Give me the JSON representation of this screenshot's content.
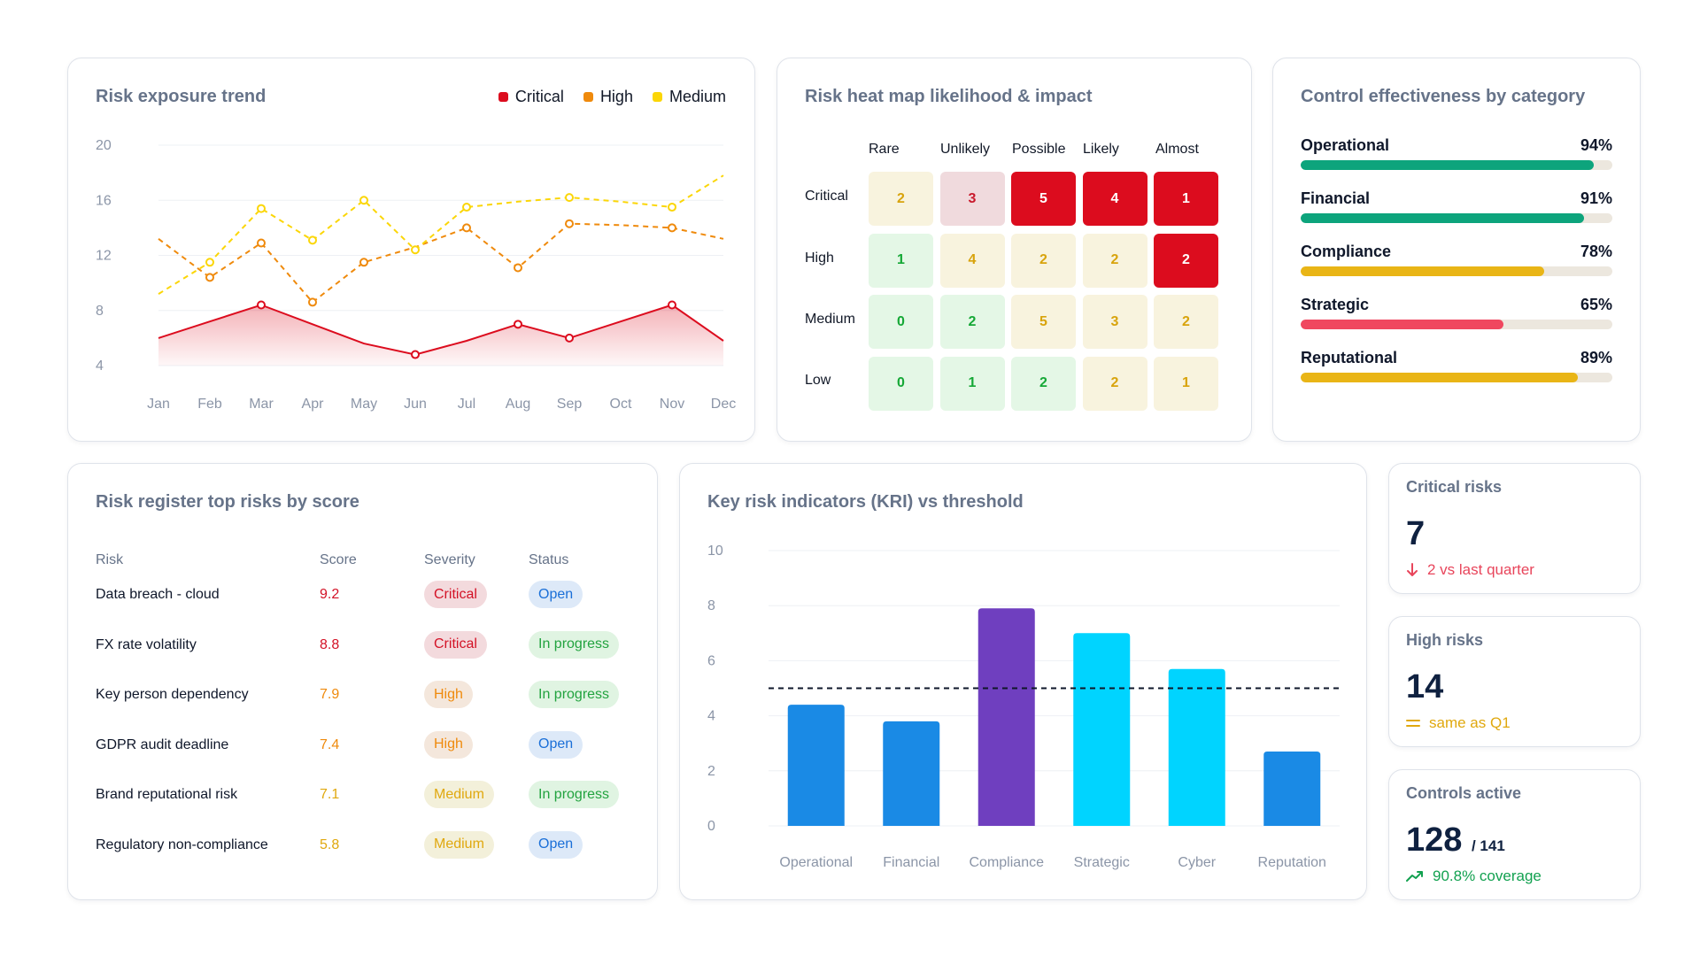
{
  "trend": {
    "title": "Risk exposure trend",
    "legend": [
      {
        "label": "Critical",
        "color": "#dc0c1e"
      },
      {
        "label": "High",
        "color": "#ef8a0c"
      },
      {
        "label": "Medium",
        "color": "#fbd607"
      }
    ]
  },
  "heatmap": {
    "title": "Risk heat map likelihood & impact",
    "columns": [
      "Rare",
      "Unlikely",
      "Possible",
      "Likely",
      "Almost"
    ],
    "rows": [
      "Critical",
      "High",
      "Medium",
      "Low"
    ]
  },
  "controls": {
    "title": "Control effectiveness by category",
    "items": [
      {
        "label": "Operational",
        "value_text": "94%",
        "value": 94,
        "color": "#0da47c"
      },
      {
        "label": "Financial",
        "value_text": "91%",
        "value": 91,
        "color": "#0da47c"
      },
      {
        "label": "Compliance",
        "value_text": "78%",
        "value": 78,
        "color": "#e9b516"
      },
      {
        "label": "Strategic",
        "value_text": "65%",
        "value": 65,
        "color": "#f0475f"
      },
      {
        "label": "Reputational",
        "value_text": "89%",
        "value": 89,
        "color": "#e9b516"
      }
    ]
  },
  "register": {
    "title": "Risk register top risks by score",
    "headers": [
      "Risk",
      "Score",
      "Severity",
      "Status"
    ],
    "rows": [
      {
        "risk": "Data breach - cloud",
        "score": "9.2",
        "severity": "Critical",
        "status": "Open"
      },
      {
        "risk": "FX rate volatility",
        "score": "8.8",
        "severity": "Critical",
        "status": "In progress"
      },
      {
        "risk": "Key person dependency",
        "score": "7.9",
        "severity": "High",
        "status": "In progress"
      },
      {
        "risk": "GDPR audit deadline",
        "score": "7.4",
        "severity": "High",
        "status": "Open"
      },
      {
        "risk": "Brand reputational risk",
        "score": "7.1",
        "severity": "Medium",
        "status": "In progress"
      },
      {
        "risk": "Regulatory non-compliance",
        "score": "5.8",
        "severity": "Medium",
        "status": "Open"
      }
    ]
  },
  "kri": {
    "title": "Key risk indicators (KRI) vs threshold"
  },
  "stats": {
    "critical": {
      "title": "Critical risks",
      "value": "7",
      "note": "2 vs last quarter",
      "note_icon": "arrow-down-icon",
      "note_color": "#e8455b"
    },
    "high": {
      "title": "High risks",
      "value": "14",
      "note": "same as Q1",
      "note_icon": "equals-icon",
      "note_color": "#e0a80e"
    },
    "controls": {
      "title": "Controls active",
      "value": "128",
      "sub": "/ 141",
      "note": "90.8% coverage",
      "note_icon": "trend-up-icon",
      "note_color": "#12a150"
    }
  },
  "chart_data": [
    {
      "type": "line",
      "title": "Risk exposure trend",
      "categories": [
        "Jan",
        "Feb",
        "Mar",
        "Apr",
        "May",
        "Jun",
        "Jul",
        "Aug",
        "Sep",
        "Oct",
        "Nov",
        "Dec"
      ],
      "yticks": [
        4,
        8,
        12,
        16,
        20
      ],
      "ylim": [
        4,
        20
      ],
      "grid": true,
      "legend_position": "top-right",
      "series": [
        {
          "name": "Critical",
          "color": "#dc0c1e",
          "style": "solid-area",
          "values": [
            6.0,
            7.2,
            8.4,
            7.0,
            5.6,
            4.8,
            5.8,
            7.0,
            6.0,
            7.2,
            8.4,
            5.8
          ],
          "markers": [
            false,
            false,
            true,
            false,
            false,
            true,
            false,
            true,
            true,
            false,
            true,
            false
          ]
        },
        {
          "name": "High",
          "color": "#ef8a0c",
          "style": "dashed",
          "values": [
            13.2,
            10.4,
            12.9,
            8.6,
            11.5,
            12.6,
            14.0,
            11.1,
            14.3,
            14.2,
            14.0,
            13.2
          ],
          "markers": [
            false,
            true,
            true,
            true,
            true,
            false,
            true,
            true,
            true,
            false,
            true,
            false
          ]
        },
        {
          "name": "Medium",
          "color": "#fbd607",
          "style": "dashed",
          "values": [
            9.2,
            11.5,
            15.4,
            13.1,
            16.0,
            12.4,
            15.5,
            15.9,
            16.2,
            15.9,
            15.5,
            17.8
          ],
          "markers": [
            false,
            true,
            true,
            true,
            true,
            true,
            true,
            false,
            true,
            false,
            true,
            false
          ]
        }
      ]
    },
    {
      "type": "heatmap",
      "title": "Risk heat map likelihood & impact",
      "x": [
        "Rare",
        "Unlikely",
        "Possible",
        "Likely",
        "Almost"
      ],
      "y": [
        "Critical",
        "High",
        "Medium",
        "Low"
      ],
      "values": [
        [
          2,
          3,
          5,
          4,
          1
        ],
        [
          1,
          4,
          2,
          2,
          2
        ],
        [
          0,
          2,
          5,
          3,
          2
        ],
        [
          0,
          1,
          2,
          2,
          1
        ]
      ]
    },
    {
      "type": "bar",
      "title": "Key risk indicators (KRI) vs threshold",
      "categories": [
        "Operational",
        "Financial",
        "Compliance",
        "Strategic",
        "Cyber",
        "Reputation"
      ],
      "values": [
        4.4,
        3.8,
        7.9,
        7.0,
        5.7,
        2.7
      ],
      "colors": [
        "#1a8ae5",
        "#1a8ae5",
        "#6f3fbf",
        "#00d4ff",
        "#00d4ff",
        "#1a8ae5"
      ],
      "threshold": 5.0,
      "ylim": [
        0,
        10
      ],
      "yticks": [
        0,
        2,
        4,
        6,
        8,
        10
      ],
      "grid": true
    }
  ]
}
